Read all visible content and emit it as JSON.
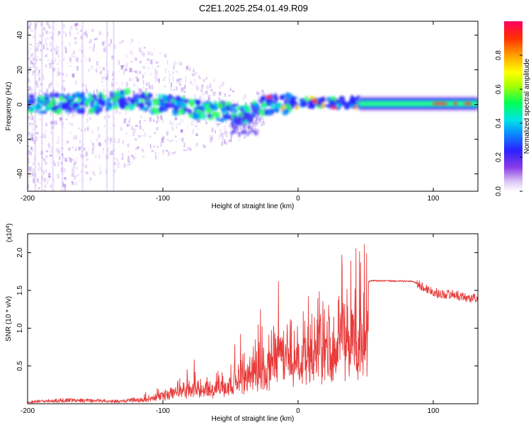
{
  "figure_title": "C2E1.2025.254.01.49.R09",
  "colors": {
    "snr_line": "#e83a3a",
    "background": "#ffffff",
    "axis": "#000000"
  },
  "chart_data": [
    {
      "type": "heatmap",
      "name": "spectrogram",
      "title": "C2E1.2025.254.01.49.R09",
      "xlabel": "Height of straight line (km)",
      "ylabel": "Frequency (Hz)",
      "xlim": [
        -200,
        133
      ],
      "ylim": [
        -50,
        48
      ],
      "xticks": [
        -200,
        -100,
        0,
        100
      ],
      "yticks": [
        -40,
        -20,
        0,
        20,
        40
      ],
      "xtick_labels": [
        "-200",
        "-100",
        "0",
        "100"
      ],
      "ytick_labels": [
        "-40",
        "-20",
        "0",
        "20",
        "40"
      ],
      "colorbar": {
        "label": "Normalized spectral amplitude",
        "range": [
          0,
          1
        ],
        "ticks": [
          0.0,
          0.2,
          0.4,
          0.6,
          0.8
        ],
        "tick_labels": [
          "0.0",
          "0.2",
          "0.4",
          "0.6",
          "0.8"
        ],
        "colormap": [
          "#ffffff",
          "#c9a3f0",
          "#7a2ee0",
          "#2020ff",
          "#00d8ff",
          "#00ff40",
          "#ffff00",
          "#ff8000",
          "#ff1040"
        ]
      },
      "ridge_center_hz": [
        {
          "x": -200,
          "y": 0
        },
        {
          "x": -150,
          "y": 1
        },
        {
          "x": -120,
          "y": 3
        },
        {
          "x": -100,
          "y": 0
        },
        {
          "x": -80,
          "y": -2
        },
        {
          "x": -60,
          "y": -4
        },
        {
          "x": -40,
          "y": -6
        },
        {
          "x": -30,
          "y": -2
        },
        {
          "x": -20,
          "y": 0
        },
        {
          "x": 0,
          "y": 1
        },
        {
          "x": 45,
          "y": 1
        },
        {
          "x": 133,
          "y": 0
        }
      ]
    },
    {
      "type": "line",
      "name": "snr",
      "xlabel": "Height of straight line (km)",
      "ylabel": "SNR (10 * v/v)",
      "scale_label": "(x10",
      "scale_exp": "4",
      "scale_close": ")",
      "xlim": [
        -200,
        133
      ],
      "ylim": [
        0,
        2.25
      ],
      "xticks": [
        -200,
        -100,
        0,
        100
      ],
      "yticks": [
        0.5,
        1.0,
        1.5,
        2.0
      ],
      "xtick_labels": [
        "-200",
        "-100",
        "0",
        "100"
      ],
      "ytick_labels": [
        "0.5",
        "1.0",
        "1.5",
        "2.0"
      ],
      "envelope": [
        {
          "x": -200,
          "y": 0.03
        },
        {
          "x": -170,
          "y": 0.06
        },
        {
          "x": -150,
          "y": 0.05
        },
        {
          "x": -130,
          "y": 0.04
        },
        {
          "x": -110,
          "y": 0.1
        },
        {
          "x": -100,
          "y": 0.15
        },
        {
          "x": -90,
          "y": 0.25
        },
        {
          "x": -80,
          "y": 0.3
        },
        {
          "x": -70,
          "y": 0.3
        },
        {
          "x": -60,
          "y": 0.35
        },
        {
          "x": -50,
          "y": 0.45
        },
        {
          "x": -40,
          "y": 0.55
        },
        {
          "x": -30,
          "y": 0.6
        },
        {
          "x": -20,
          "y": 0.85
        },
        {
          "x": -15,
          "y": 1.0
        },
        {
          "x": 0,
          "y": 1.1
        },
        {
          "x": 20,
          "y": 1.3
        },
        {
          "x": 40,
          "y": 1.5
        },
        {
          "x": 52,
          "y": 1.6
        },
        {
          "x": 53,
          "y": 1.63
        },
        {
          "x": 85,
          "y": 1.62
        },
        {
          "x": 95,
          "y": 1.52
        },
        {
          "x": 105,
          "y": 1.45
        },
        {
          "x": 115,
          "y": 1.45
        },
        {
          "x": 125,
          "y": 1.4
        },
        {
          "x": 133,
          "y": 1.4
        }
      ]
    }
  ]
}
